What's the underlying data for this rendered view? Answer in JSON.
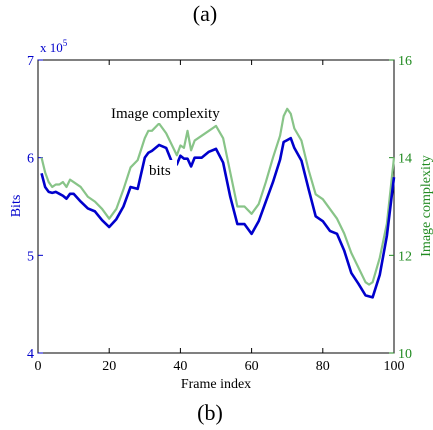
{
  "captions": {
    "top": "(a)",
    "bottom": "(b)"
  },
  "colors": {
    "bits": "#0000cc",
    "complexity": "#88c488",
    "left_axis": "#0000cc",
    "right_axis": "#228b22",
    "frame": "#000000"
  },
  "chart_data": {
    "type": "line",
    "title": "",
    "xlabel": "Frame index",
    "ylabel_left": "Bits",
    "ylabel_right": "Image complexity",
    "xlim": [
      0,
      100
    ],
    "ylim_left": [
      4,
      7
    ],
    "ylim_right": [
      10,
      16
    ],
    "left_multiplier": "x 10",
    "left_multiplier_exp": "5",
    "x_ticks": [
      "0",
      "20",
      "40",
      "60",
      "80",
      "100"
    ],
    "left_ticks": [
      "4",
      "5",
      "6",
      "7"
    ],
    "right_ticks": [
      "10",
      "12",
      "14",
      "16"
    ],
    "legend_entries": {
      "complexity": "Image complexity",
      "bits": "bits"
    },
    "series": [
      {
        "name": "bits",
        "axis": "left",
        "x": [
          1,
          2,
          3,
          4,
          5,
          6,
          7,
          8,
          9,
          10,
          12,
          14,
          16,
          18,
          20,
          22,
          24,
          26,
          28,
          30,
          31,
          32,
          34,
          36,
          38,
          39,
          40,
          41,
          42,
          43,
          44,
          46,
          48,
          50,
          52,
          54,
          56,
          58,
          60,
          62,
          64,
          66,
          68,
          69,
          70,
          71,
          72,
          74,
          76,
          78,
          80,
          82,
          84,
          86,
          88,
          90,
          92,
          93,
          94,
          96,
          98,
          100
        ],
        "values": [
          5.84,
          5.7,
          5.65,
          5.64,
          5.65,
          5.63,
          5.61,
          5.58,
          5.63,
          5.63,
          5.55,
          5.48,
          5.45,
          5.36,
          5.29,
          5.37,
          5.5,
          5.7,
          5.68,
          6.0,
          6.05,
          6.07,
          6.13,
          6.1,
          5.92,
          5.93,
          6.02,
          5.99,
          5.99,
          5.91,
          6.0,
          6.0,
          6.06,
          6.09,
          5.95,
          5.6,
          5.32,
          5.32,
          5.22,
          5.35,
          5.55,
          5.75,
          5.98,
          6.16,
          6.18,
          6.2,
          6.1,
          5.97,
          5.68,
          5.4,
          5.35,
          5.25,
          5.22,
          5.05,
          4.82,
          4.71,
          4.59,
          4.58,
          4.57,
          4.8,
          5.2,
          5.8
        ]
      },
      {
        "name": "Image complexity",
        "axis": "right",
        "x": [
          1,
          2,
          3,
          4,
          5,
          6,
          7,
          8,
          9,
          10,
          12,
          14,
          16,
          18,
          20,
          22,
          24,
          26,
          28,
          30,
          31,
          32,
          34,
          36,
          38,
          39,
          40,
          41,
          42,
          43,
          44,
          46,
          48,
          50,
          52,
          54,
          56,
          58,
          60,
          62,
          64,
          66,
          68,
          69,
          70,
          71,
          72,
          74,
          76,
          78,
          80,
          82,
          84,
          86,
          88,
          90,
          92,
          93,
          94,
          96,
          98,
          100
        ],
        "values": [
          14.0,
          13.7,
          13.5,
          13.4,
          13.45,
          13.45,
          13.5,
          13.4,
          13.55,
          13.5,
          13.4,
          13.2,
          13.1,
          12.95,
          12.75,
          12.95,
          13.35,
          13.8,
          13.95,
          14.4,
          14.55,
          14.55,
          14.7,
          14.5,
          14.2,
          14.05,
          14.25,
          14.2,
          14.55,
          14.15,
          14.35,
          14.45,
          14.55,
          14.65,
          14.4,
          13.7,
          13.0,
          13.0,
          12.85,
          13.05,
          13.5,
          14.0,
          14.45,
          14.85,
          15.0,
          14.9,
          14.6,
          14.35,
          13.75,
          13.25,
          13.15,
          12.95,
          12.75,
          12.45,
          12.05,
          11.75,
          11.45,
          11.4,
          11.45,
          11.95,
          12.65,
          14.0
        ]
      }
    ]
  }
}
